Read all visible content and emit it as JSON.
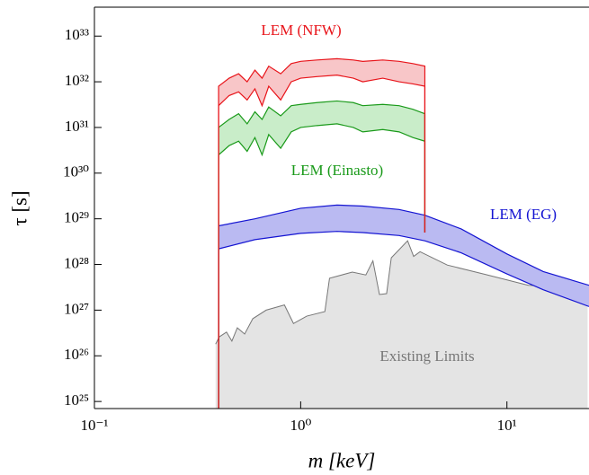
{
  "chart_data": {
    "type": "line",
    "x_label": "m [keV]",
    "y_label": "τ [s]",
    "xscale": "log",
    "yscale": "log",
    "xlim": [
      0.1,
      25
    ],
    "ylim": [
      7e+24,
      4.3e+33
    ],
    "xticks": [
      {
        "value": 0.1,
        "label": "10⁻¹"
      },
      {
        "value": 1,
        "label": "10⁰"
      },
      {
        "value": 10,
        "label": "10¹"
      }
    ],
    "yticks": [
      {
        "value": 1e+25,
        "label": "10²⁵"
      },
      {
        "value": 1e+26,
        "label": "10²⁶"
      },
      {
        "value": 1e+27,
        "label": "10²⁷"
      },
      {
        "value": 1e+28,
        "label": "10²⁸"
      },
      {
        "value": 1e+29,
        "label": "10²⁹"
      },
      {
        "value": 1e+30,
        "label": "10³⁰"
      },
      {
        "value": 1e+31,
        "label": "10³¹"
      },
      {
        "value": 1e+32,
        "label": "10³²"
      },
      {
        "value": 1e+33,
        "label": "10³³"
      }
    ],
    "series": [
      {
        "name": "Existing Limits",
        "type": "area",
        "color": "#777777",
        "fill": "#e4e4e4",
        "x": [
          0.387,
          0.403,
          0.437,
          0.464,
          0.493,
          0.535,
          0.586,
          0.68,
          0.834,
          0.923,
          1.07,
          1.31,
          1.38,
          1.78,
          2.07,
          2.24,
          2.41,
          2.61,
          2.75,
          3.3,
          3.53,
          3.79,
          5.14,
          7.7,
          12.7,
          21.1,
          24.6
        ],
        "values": [
          1.8e+26,
          2.6e+26,
          3.3e+26,
          2.1e+26,
          4.1e+26,
          3e+26,
          6.5e+26,
          1e+27,
          1.3e+27,
          5.1e+26,
          7.4e+26,
          9.3e+26,
          5e+27,
          6.8e+27,
          5.9e+27,
          1.2e+28,
          2.2e+27,
          2.3e+27,
          1.4e+28,
          3.3e+28,
          1.5e+28,
          1.9e+28,
          9.7e+27,
          6.2e+27,
          3.5e+27,
          3.2e+27,
          2.5e+27
        ]
      },
      {
        "name": "LEM (EG)",
        "type": "band",
        "color": "#1414d2",
        "fill": "#babaf2",
        "x": [
          0.4,
          0.4,
          0.6,
          1.0,
          1.5,
          2.0,
          3.0,
          4.0,
          6.0,
          10,
          15,
          25
        ],
        "upper": [
          7e+24,
          7e+28,
          1e+29,
          1.7e+29,
          2e+29,
          1.9e+29,
          1.6e+29,
          1.2e+29,
          6e+28,
          1.7e+28,
          7e+27,
          3.5e+27
        ],
        "lower": [
          7e+24,
          2.2e+28,
          3.5e+28,
          4.8e+28,
          5.3e+28,
          5e+28,
          4.3e+28,
          3.3e+28,
          1.8e+28,
          6.2e+27,
          2.8e+27,
          1.2e+27
        ]
      },
      {
        "name": "LEM (Einasto)",
        "type": "band",
        "color": "#1a9a1a",
        "fill": "#c9edc9",
        "x": [
          0.4,
          0.4,
          0.45,
          0.5,
          0.55,
          0.6,
          0.65,
          0.7,
          0.8,
          0.9,
          1.0,
          1.2,
          1.5,
          1.8,
          2.0,
          2.5,
          3.0,
          3.5,
          4.0,
          4.0
        ],
        "upper": [
          7e+24,
          1e+31,
          1.5e+31,
          2e+31,
          1.2e+31,
          2.2e+31,
          1.5e+31,
          2.8e+31,
          1.8e+31,
          3e+31,
          3.2e+31,
          3.5e+31,
          3.8e+31,
          3.5e+31,
          3e+31,
          3.2e+31,
          3e+31,
          2.5e+31,
          2e+31,
          5e+28
        ],
        "lower": [
          7e+24,
          2.5e+30,
          4e+30,
          5e+30,
          3e+30,
          6e+30,
          2.5e+30,
          7e+30,
          3.5e+30,
          8e+30,
          1e+31,
          1.1e+31,
          1.2e+31,
          1e+31,
          8e+30,
          9e+30,
          8e+30,
          6e+30,
          5e+30,
          5e+28
        ]
      },
      {
        "name": "LEM (NFW)",
        "type": "band",
        "color": "#e8141a",
        "fill": "#f8c6c8",
        "x": [
          0.4,
          0.4,
          0.45,
          0.5,
          0.55,
          0.6,
          0.65,
          0.7,
          0.8,
          0.9,
          1.0,
          1.2,
          1.5,
          1.8,
          2.0,
          2.5,
          3.0,
          3.5,
          4.0,
          4.0
        ],
        "upper": [
          7e+24,
          8e+31,
          1.2e+32,
          1.5e+32,
          1e+32,
          1.8e+32,
          1.2e+32,
          2.2e+32,
          1.5e+32,
          2.5e+32,
          2.8e+32,
          3e+32,
          3.2e+32,
          3e+32,
          2.8e+32,
          3e+32,
          2.8e+32,
          2.5e+32,
          2.2e+32,
          5e+28
        ],
        "lower": [
          7e+24,
          3e+31,
          5e+31,
          6e+31,
          4e+31,
          7e+31,
          3e+31,
          8e+31,
          4e+31,
          1e+32,
          1.2e+32,
          1.3e+32,
          1.4e+32,
          1.2e+32,
          1e+32,
          1.2e+32,
          1e+32,
          9e+31,
          8e+31,
          5e+28
        ]
      }
    ]
  }
}
